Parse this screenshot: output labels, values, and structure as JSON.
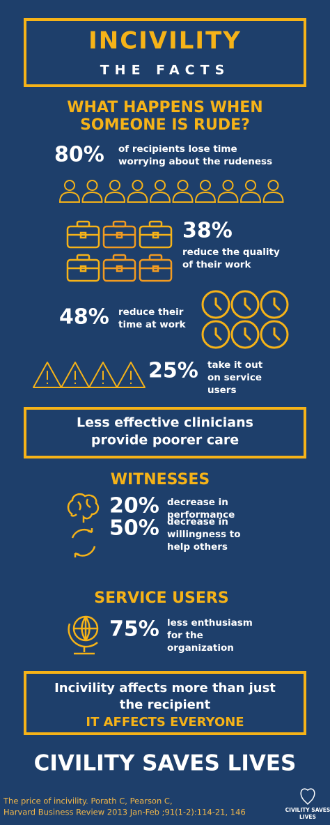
{
  "header": {
    "title": "INCIVILITY",
    "subtitle": "THE FACTS"
  },
  "recipients": {
    "heading": [
      "WHAT HAPPENS WHEN",
      "SOMEONE IS RUDE?"
    ],
    "stats": [
      {
        "value": "80%",
        "text": [
          "of recipients lose time",
          "worrying about the rudeness"
        ]
      },
      {
        "value": "38%",
        "text": [
          "reduce the quality",
          "of their work"
        ]
      },
      {
        "value": "48%",
        "text": [
          "reduce their",
          "time at work"
        ]
      },
      {
        "value": "25%",
        "text": [
          "take it out",
          "on service",
          "users"
        ]
      }
    ]
  },
  "callout1": [
    "Less effective clinicians",
    "provide poorer care"
  ],
  "witnesses": {
    "heading": "WITNESSES",
    "stats": [
      {
        "value": "20%",
        "text": [
          "decrease in",
          "performance"
        ]
      },
      {
        "value": "50%",
        "text": [
          "decrease in",
          "willingness to",
          "help others"
        ]
      }
    ]
  },
  "service_users": {
    "heading": "SERVICE USERS",
    "stats": [
      {
        "value": "75%",
        "text": [
          "less enthusiasm",
          "for the",
          "organization"
        ]
      }
    ]
  },
  "callout2": {
    "lines": [
      "Incivility affects more than just",
      "the recipient"
    ],
    "emphasis": "IT AFFECTS EVERYONE"
  },
  "footer": {
    "title": "CIVILITY SAVES LIVES",
    "citation": [
      "The price of incivility. Porath C, Pearson C,",
      "Harvard Business Review 2013 Jan-Feb ;91(1-2):114-21, 146"
    ],
    "logo": [
      "CIVILITY SAVES",
      "LIVES"
    ]
  }
}
